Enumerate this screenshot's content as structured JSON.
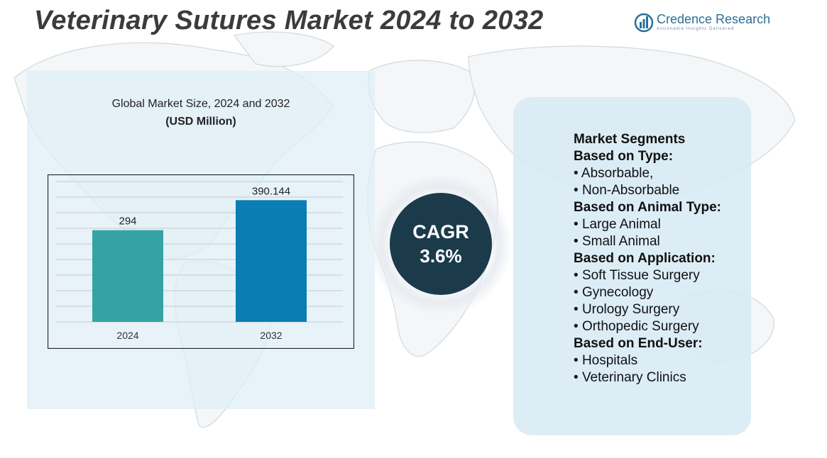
{
  "title": "Veterinary Sutures Market  2024 to 2032",
  "logo": {
    "name": "Credence Research",
    "tagline": "Actionable Insights Delivered",
    "icon": "bar-chart-circle-icon",
    "color": "#2a6f97"
  },
  "chart_panel": {
    "caption": "Global Market Size, 2024 and 2032",
    "unit": "(USD Million)"
  },
  "chart_data": {
    "type": "bar",
    "categories": [
      "2024",
      "2032"
    ],
    "values": [
      294,
      390.144
    ],
    "value_labels": [
      "294",
      "390.144"
    ],
    "colors": [
      "#35a3a3",
      "#0a7db3"
    ],
    "title": "Global Market Size, 2024 and 2032",
    "ylabel": "(USD Million)",
    "ylim": [
      0,
      450
    ],
    "grid": true,
    "legend": "none"
  },
  "cagr": {
    "label": "CAGR",
    "value": "3.6%",
    "color": "#1b3b4b"
  },
  "segments": {
    "title": "Market Segments",
    "groups": [
      {
        "title": "Based on Type:",
        "items": [
          "Absorbable,",
          "Non-Absorbable"
        ]
      },
      {
        "title": "Based on Animal Type:",
        "items": [
          "Large Animal",
          "Small Animal"
        ]
      },
      {
        "title": "Based on Application:",
        "items": [
          "Soft Tissue Surgery",
          "Gynecology",
          "Urology Surgery",
          "Orthopedic Surgery"
        ]
      },
      {
        "title": "Based on End-User:",
        "items": [
          "Hospitals",
          "Veterinary Clinics"
        ]
      }
    ]
  }
}
